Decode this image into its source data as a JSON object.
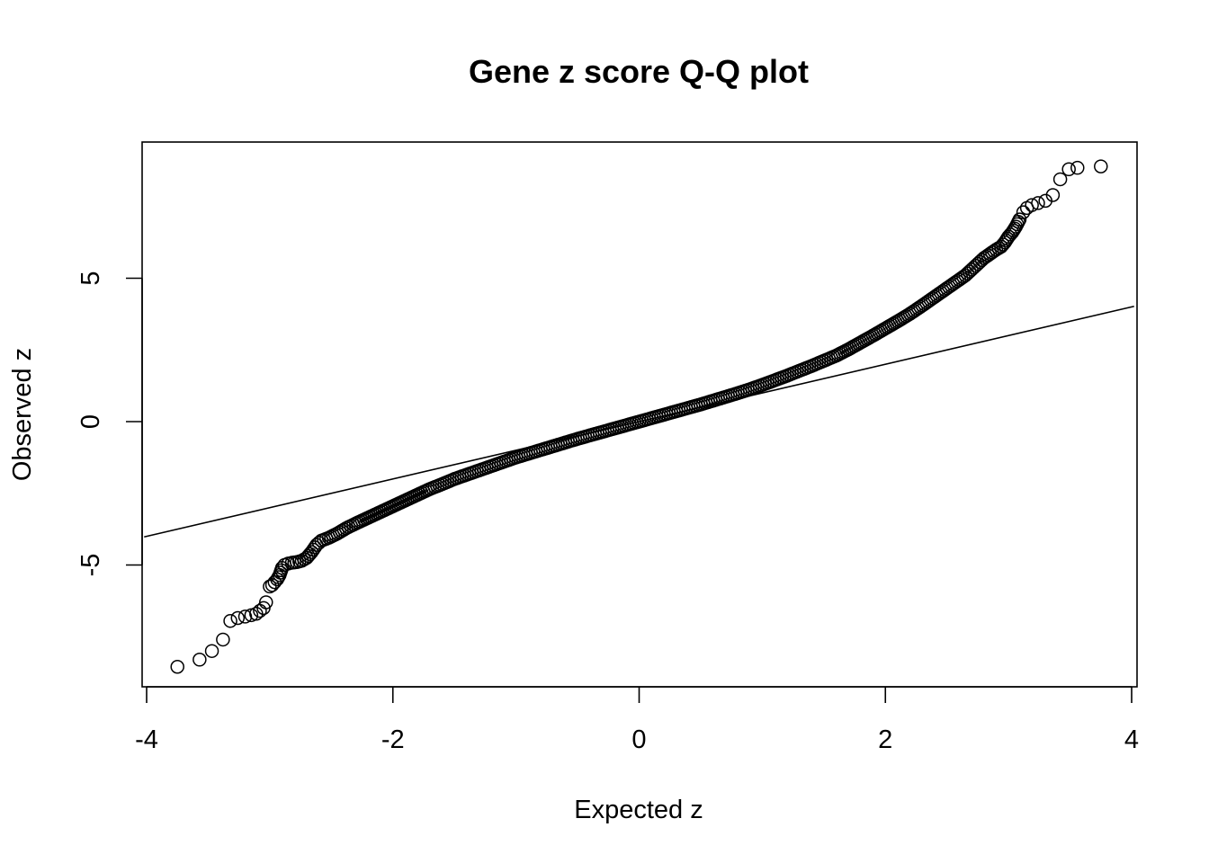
{
  "chart_data": {
    "type": "scatter",
    "title": "Gene z score Q-Q plot",
    "xlabel": "Expected z",
    "ylabel": "Observed z",
    "xlim": [
      -4.0,
      4.0
    ],
    "ylim": [
      -9.15,
      9.8
    ],
    "x_ticks": [
      -4,
      -2,
      0,
      2,
      4
    ],
    "y_ticks": [
      -5,
      0,
      5
    ],
    "grid": false,
    "legend": "none",
    "marker": "open-circle",
    "reference_line": {
      "intercept": 0,
      "slope": 1
    },
    "points": [
      [
        -3.75,
        -8.55
      ],
      [
        -3.57,
        -8.3
      ],
      [
        -3.47,
        -8.0
      ],
      [
        -3.38,
        -7.6
      ],
      [
        -3.32,
        -6.95
      ],
      [
        -3.26,
        -6.85
      ],
      [
        -3.2,
        -6.8
      ],
      [
        -3.15,
        -6.75
      ],
      [
        -3.11,
        -6.7
      ],
      [
        -3.08,
        -6.6
      ],
      [
        -3.05,
        -6.5
      ],
      [
        -3.03,
        -6.3
      ],
      [
        -3.0,
        -5.75
      ],
      [
        -2.98,
        -5.7
      ],
      [
        -2.96,
        -5.6
      ],
      [
        -2.94,
        -5.5
      ],
      [
        -2.92,
        -5.35
      ],
      [
        -2.9,
        -5.1
      ],
      [
        -2.88,
        -5.0
      ],
      [
        -2.85,
        -4.95
      ],
      [
        -2.82,
        -4.92
      ],
      [
        -2.78,
        -4.9
      ],
      [
        -2.74,
        -4.85
      ],
      [
        -2.7,
        -4.75
      ],
      [
        -2.66,
        -4.55
      ],
      [
        -2.62,
        -4.3
      ],
      [
        -2.58,
        -4.15
      ],
      [
        -2.52,
        -4.05
      ],
      [
        -2.45,
        -3.9
      ],
      [
        -2.38,
        -3.72
      ],
      [
        -2.3,
        -3.55
      ],
      [
        -2.2,
        -3.35
      ],
      [
        -2.1,
        -3.15
      ],
      [
        -2.0,
        -2.95
      ],
      [
        -1.9,
        -2.75
      ],
      [
        -1.8,
        -2.55
      ],
      [
        -1.7,
        -2.35
      ],
      [
        -1.6,
        -2.18
      ],
      [
        -1.5,
        -2.0
      ],
      [
        -1.4,
        -1.85
      ],
      [
        -1.3,
        -1.7
      ],
      [
        -1.2,
        -1.55
      ],
      [
        -1.1,
        -1.4
      ],
      [
        -1.0,
        -1.25
      ],
      [
        -0.9,
        -1.12
      ],
      [
        -0.8,
        -0.99
      ],
      [
        -0.7,
        -0.86
      ],
      [
        -0.6,
        -0.73
      ],
      [
        -0.5,
        -0.6
      ],
      [
        -0.4,
        -0.48
      ],
      [
        -0.3,
        -0.36
      ],
      [
        -0.2,
        -0.24
      ],
      [
        -0.1,
        -0.12
      ],
      [
        0.0,
        0.0
      ],
      [
        0.1,
        0.12
      ],
      [
        0.2,
        0.24
      ],
      [
        0.3,
        0.36
      ],
      [
        0.4,
        0.48
      ],
      [
        0.5,
        0.6
      ],
      [
        0.6,
        0.73
      ],
      [
        0.7,
        0.86
      ],
      [
        0.8,
        0.99
      ],
      [
        0.9,
        1.13
      ],
      [
        1.0,
        1.28
      ],
      [
        1.1,
        1.44
      ],
      [
        1.2,
        1.6
      ],
      [
        1.3,
        1.77
      ],
      [
        1.4,
        1.94
      ],
      [
        1.5,
        2.12
      ],
      [
        1.6,
        2.3
      ],
      [
        1.7,
        2.52
      ],
      [
        1.8,
        2.76
      ],
      [
        1.9,
        3.0
      ],
      [
        2.0,
        3.25
      ],
      [
        2.1,
        3.5
      ],
      [
        2.2,
        3.76
      ],
      [
        2.3,
        4.05
      ],
      [
        2.4,
        4.35
      ],
      [
        2.5,
        4.65
      ],
      [
        2.6,
        4.95
      ],
      [
        2.65,
        5.1
      ],
      [
        2.7,
        5.3
      ],
      [
        2.75,
        5.5
      ],
      [
        2.8,
        5.7
      ],
      [
        2.85,
        5.85
      ],
      [
        2.9,
        6.0
      ],
      [
        2.94,
        6.1
      ],
      [
        2.97,
        6.25
      ],
      [
        3.0,
        6.45
      ],
      [
        3.03,
        6.6
      ],
      [
        3.06,
        6.8
      ],
      [
        3.09,
        7.05
      ],
      [
        3.12,
        7.3
      ],
      [
        3.15,
        7.45
      ],
      [
        3.19,
        7.55
      ],
      [
        3.24,
        7.62
      ],
      [
        3.3,
        7.7
      ],
      [
        3.36,
        7.9
      ],
      [
        3.42,
        8.45
      ],
      [
        3.49,
        8.8
      ],
      [
        3.56,
        8.85
      ],
      [
        3.75,
        8.9
      ]
    ]
  }
}
